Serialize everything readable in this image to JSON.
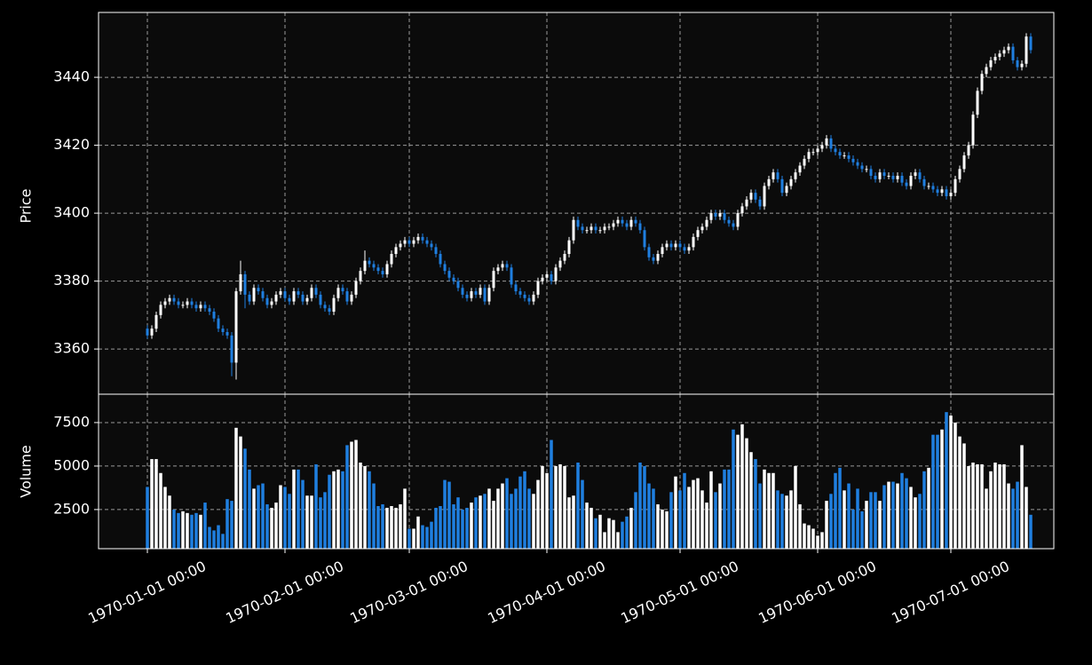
{
  "chart_data": {
    "type": "candlestick",
    "ylabel": "Price",
    "volume_ylabel": "Volume",
    "up_color": "#ffffff",
    "down_color": "#1f7fe0",
    "grid": true,
    "xlim": [
      -11,
      204.2
    ],
    "xticks": [
      {
        "value": 0,
        "label": "1970-01-01 00:00"
      },
      {
        "value": 31,
        "label": "1970-02-01 00:00"
      },
      {
        "value": 59,
        "label": "1970-03-01 00:00"
      },
      {
        "value": 90,
        "label": "1970-04-01 00:00"
      },
      {
        "value": 120,
        "label": "1970-05-01 00:00"
      },
      {
        "value": 151,
        "label": "1970-06-01 00:00"
      },
      {
        "value": 181,
        "label": "1970-07-01 00:00"
      }
    ],
    "ylim": [
      3346.7,
      3459.1
    ],
    "yticks": [
      3360,
      3380,
      3400,
      3420,
      3440
    ],
    "volume_ylim": [
      250,
      9130
    ],
    "volume_yticks": [
      2500,
      5000,
      7500
    ],
    "x": [
      0,
      1,
      2,
      3,
      4,
      5,
      6,
      7,
      8,
      9,
      10,
      11,
      12,
      13,
      14,
      15,
      16,
      17,
      18,
      19,
      20,
      21,
      22,
      23,
      24,
      25,
      26,
      27,
      28,
      29,
      30,
      31,
      32,
      33,
      34,
      35,
      36,
      37,
      38,
      39,
      40,
      41,
      42,
      43,
      44,
      45,
      46,
      47,
      48,
      49,
      50,
      51,
      52,
      53,
      54,
      55,
      56,
      57,
      58,
      59,
      60,
      61,
      62,
      63,
      64,
      65,
      66,
      67,
      68,
      69,
      70,
      71,
      72,
      73,
      74,
      75,
      76,
      77,
      78,
      79,
      80,
      81,
      82,
      83,
      84,
      85,
      86,
      87,
      88,
      89,
      90,
      91,
      92,
      93,
      94,
      95,
      96,
      97,
      98,
      99,
      100,
      101,
      102,
      103,
      104,
      105,
      106,
      107,
      108,
      109,
      110,
      111,
      112,
      113,
      114,
      115,
      116,
      117,
      118,
      119,
      120,
      121,
      122,
      123,
      124,
      125,
      126,
      127,
      128,
      129,
      130,
      131,
      132,
      133,
      134,
      135,
      136,
      137,
      138,
      139,
      140,
      141,
      142,
      143,
      144,
      145,
      146,
      147,
      148,
      149,
      150,
      151,
      152,
      153,
      154,
      155,
      156,
      157,
      158,
      159,
      160,
      161,
      162,
      163,
      164,
      165,
      166,
      167,
      168,
      169,
      170,
      171,
      172,
      173,
      174,
      175,
      176,
      177,
      178,
      179,
      180,
      181,
      182,
      183,
      184,
      185,
      186,
      187,
      188,
      189,
      190,
      191,
      192,
      193,
      194,
      195,
      196,
      197,
      198,
      199
    ],
    "open": [
      3366,
      3364,
      3366,
      3370,
      3373,
      3374,
      3375,
      3374,
      3373,
      3373,
      3374,
      3373,
      3372,
      3373,
      3372,
      3371,
      3369,
      3366,
      3365,
      3364,
      3356,
      3377,
      3382,
      3376,
      3374,
      3378,
      3377,
      3375,
      3373,
      3374,
      3376,
      3377,
      3375,
      3374,
      3377,
      3376,
      3374,
      3375,
      3378,
      3376,
      3373,
      3372,
      3371,
      3375,
      3378,
      3377,
      3374,
      3376,
      3380,
      3383,
      3386,
      3385,
      3384,
      3383,
      3382,
      3385,
      3388,
      3390,
      3391,
      3392,
      3391,
      3392,
      3393,
      3392,
      3391,
      3390,
      3388,
      3385,
      3383,
      3381,
      3380,
      3378,
      3376,
      3375,
      3377,
      3376,
      3378,
      3374,
      3378,
      3383,
      3384,
      3385,
      3384,
      3379,
      3377,
      3376,
      3375,
      3374,
      3376,
      3380,
      3381,
      3382,
      3380,
      3384,
      3386,
      3388,
      3392,
      3398,
      3396,
      3395,
      3395,
      3396,
      3395,
      3395,
      3396,
      3396,
      3397,
      3398,
      3397,
      3396,
      3398,
      3397,
      3395,
      3390,
      3387,
      3386,
      3388,
      3390,
      3391,
      3390,
      3391,
      3390,
      3389,
      3390,
      3393,
      3395,
      3396,
      3398,
      3400,
      3399,
      3400,
      3398,
      3397,
      3396,
      3400,
      3402,
      3404,
      3406,
      3404,
      3402,
      3408,
      3410,
      3412,
      3410,
      3406,
      3408,
      3410,
      3412,
      3414,
      3416,
      3418,
      3418,
      3419,
      3420,
      3422,
      3419,
      3418,
      3417,
      3417,
      3416,
      3415,
      3414,
      3413,
      3413,
      3411,
      3410,
      3412,
      3411,
      3411,
      3410,
      3411,
      3409,
      3408,
      3411,
      3412,
      3410,
      3408,
      3408,
      3407,
      3406,
      3407,
      3405,
      3406,
      3410,
      3413,
      3417,
      3420,
      3429,
      3436,
      3441,
      3443,
      3445,
      3446,
      3447,
      3448,
      3449,
      3445,
      3443,
      3444,
      3452
    ],
    "high": [
      3367,
      3367,
      3371,
      3374,
      3375,
      3376,
      3376,
      3375,
      3374,
      3375,
      3375,
      3374,
      3374,
      3374,
      3373,
      3372,
      3370,
      3367,
      3366,
      3365,
      3378,
      3386,
      3383,
      3377,
      3379,
      3379,
      3378,
      3376,
      3375,
      3377,
      3378,
      3378,
      3376,
      3378,
      3378,
      3377,
      3376,
      3379,
      3379,
      3377,
      3374,
      3373,
      3376,
      3379,
      3379,
      3378,
      3377,
      3381,
      3384,
      3389,
      3387,
      3386,
      3385,
      3384,
      3386,
      3389,
      3391,
      3392,
      3393,
      3393,
      3393,
      3394,
      3394,
      3393,
      3392,
      3391,
      3389,
      3386,
      3384,
      3382,
      3381,
      3379,
      3377,
      3378,
      3378,
      3379,
      3379,
      3379,
      3384,
      3385,
      3386,
      3386,
      3385,
      3380,
      3378,
      3377,
      3376,
      3377,
      3381,
      3382,
      3383,
      3383,
      3385,
      3387,
      3389,
      3393,
      3399,
      3399,
      3397,
      3396,
      3397,
      3397,
      3396,
      3397,
      3397,
      3398,
      3399,
      3399,
      3398,
      3399,
      3399,
      3398,
      3396,
      3391,
      3388,
      3389,
      3391,
      3392,
      3392,
      3392,
      3392,
      3391,
      3391,
      3394,
      3396,
      3397,
      3399,
      3401,
      3401,
      3401,
      3401,
      3399,
      3398,
      3401,
      3403,
      3405,
      3407,
      3407,
      3405,
      3409,
      3411,
      3413,
      3413,
      3411,
      3409,
      3411,
      3413,
      3415,
      3417,
      3419,
      3419,
      3420,
      3421,
      3423,
      3423,
      3420,
      3419,
      3418,
      3418,
      3417,
      3416,
      3415,
      3414,
      3414,
      3412,
      3413,
      3413,
      3412,
      3412,
      3412,
      3412,
      3410,
      3412,
      3413,
      3413,
      3411,
      3409,
      3409,
      3408,
      3408,
      3408,
      3407,
      3411,
      3414,
      3418,
      3421,
      3430,
      3437,
      3442,
      3444,
      3446,
      3447,
      3448,
      3449,
      3450,
      3450,
      3446,
      3445,
      3453,
      3453
    ],
    "low": [
      3363,
      3363,
      3365,
      3369,
      3372,
      3373,
      3373,
      3372,
      3372,
      3372,
      3372,
      3371,
      3371,
      3371,
      3370,
      3368,
      3365,
      3364,
      3363,
      3352,
      3351,
      3376,
      3372,
      3373,
      3373,
      3376,
      3374,
      3372,
      3372,
      3373,
      3375,
      3374,
      3373,
      3373,
      3375,
      3373,
      3373,
      3374,
      3375,
      3372,
      3371,
      3370,
      3370,
      3374,
      3376,
      3373,
      3373,
      3375,
      3379,
      3382,
      3384,
      3383,
      3382,
      3381,
      3381,
      3384,
      3387,
      3389,
      3390,
      3390,
      3390,
      3391,
      3391,
      3390,
      3389,
      3387,
      3384,
      3382,
      3380,
      3379,
      3377,
      3375,
      3374,
      3374,
      3375,
      3375,
      3373,
      3373,
      3377,
      3382,
      3383,
      3383,
      3378,
      3376,
      3375,
      3374,
      3373,
      3373,
      3375,
      3379,
      3380,
      3379,
      3379,
      3383,
      3385,
      3387,
      3391,
      3395,
      3394,
      3394,
      3394,
      3394,
      3394,
      3394,
      3395,
      3395,
      3396,
      3396,
      3395,
      3395,
      3396,
      3394,
      3389,
      3386,
      3385,
      3385,
      3387,
      3389,
      3389,
      3389,
      3389,
      3388,
      3388,
      3389,
      3392,
      3394,
      3395,
      3397,
      3398,
      3398,
      3397,
      3396,
      3395,
      3395,
      3399,
      3401,
      3403,
      3403,
      3401,
      3401,
      3407,
      3409,
      3409,
      3405,
      3405,
      3407,
      3409,
      3411,
      3413,
      3415,
      3417,
      3417,
      3418,
      3419,
      3418,
      3417,
      3416,
      3416,
      3415,
      3414,
      3413,
      3412,
      3412,
      3410,
      3409,
      3409,
      3410,
      3410,
      3409,
      3409,
      3408,
      3407,
      3407,
      3410,
      3409,
      3407,
      3407,
      3406,
      3405,
      3405,
      3404,
      3404,
      3405,
      3409,
      3412,
      3416,
      3419,
      3428,
      3435,
      3440,
      3442,
      3444,
      3445,
      3446,
      3447,
      3444,
      3442,
      3442,
      3443,
      3447
    ],
    "close": [
      3364,
      3366,
      3370,
      3373,
      3374,
      3375,
      3374,
      3373,
      3373,
      3374,
      3373,
      3372,
      3373,
      3372,
      3371,
      3369,
      3366,
      3365,
      3364,
      3356,
      3377,
      3382,
      3376,
      3374,
      3378,
      3377,
      3375,
      3373,
      3374,
      3376,
      3377,
      3375,
      3374,
      3377,
      3376,
      3374,
      3375,
      3378,
      3376,
      3373,
      3372,
      3371,
      3375,
      3378,
      3377,
      3374,
      3376,
      3380,
      3383,
      3386,
      3385,
      3384,
      3383,
      3382,
      3385,
      3388,
      3390,
      3391,
      3392,
      3391,
      3392,
      3393,
      3392,
      3391,
      3390,
      3388,
      3385,
      3383,
      3381,
      3380,
      3378,
      3376,
      3375,
      3377,
      3376,
      3378,
      3374,
      3378,
      3383,
      3384,
      3385,
      3384,
      3379,
      3377,
      3376,
      3375,
      3374,
      3376,
      3380,
      3381,
      3382,
      3380,
      3384,
      3386,
      3388,
      3392,
      3398,
      3396,
      3395,
      3395,
      3396,
      3395,
      3395,
      3396,
      3396,
      3397,
      3398,
      3397,
      3396,
      3398,
      3397,
      3395,
      3390,
      3387,
      3386,
      3388,
      3390,
      3391,
      3390,
      3391,
      3390,
      3389,
      3390,
      3393,
      3395,
      3396,
      3398,
      3400,
      3399,
      3400,
      3398,
      3397,
      3396,
      3400,
      3402,
      3404,
      3406,
      3404,
      3402,
      3408,
      3410,
      3412,
      3410,
      3406,
      3408,
      3410,
      3412,
      3414,
      3416,
      3418,
      3418,
      3419,
      3420,
      3422,
      3419,
      3418,
      3417,
      3417,
      3416,
      3415,
      3414,
      3413,
      3413,
      3411,
      3410,
      3412,
      3411,
      3411,
      3410,
      3411,
      3409,
      3408,
      3411,
      3412,
      3410,
      3408,
      3408,
      3407,
      3406,
      3407,
      3405,
      3406,
      3410,
      3413,
      3417,
      3420,
      3429,
      3436,
      3441,
      3443,
      3445,
      3446,
      3447,
      3448,
      3449,
      3445,
      3443,
      3444,
      3452,
      3448
    ],
    "volume": [
      3800,
      5400,
      5400,
      4600,
      3800,
      3300,
      2500,
      2300,
      2400,
      2300,
      2200,
      2300,
      2200,
      2900,
      1500,
      1300,
      1600,
      1100,
      3100,
      3000,
      7200,
      6700,
      6000,
      4800,
      3700,
      3900,
      4000,
      2800,
      2600,
      2900,
      3900,
      3800,
      3400,
      4800,
      4800,
      4200,
      3300,
      3300,
      5100,
      3200,
      3500,
      4500,
      4700,
      4800,
      4700,
      6200,
      6400,
      6500,
      5200,
      5000,
      4700,
      4000,
      2700,
      2800,
      2600,
      2700,
      2600,
      2800,
      3700,
      1400,
      1400,
      2100,
      1600,
      1500,
      1800,
      2600,
      2700,
      4200,
      4100,
      2800,
      3200,
      2500,
      2600,
      2900,
      3200,
      3300,
      3400,
      3700,
      3000,
      3700,
      4000,
      4300,
      3400,
      3700,
      4400,
      4700,
      3700,
      3400,
      4200,
      5000,
      4600,
      6500,
      5000,
      5100,
      5000,
      3200,
      3300,
      5200,
      4200,
      2900,
      2600,
      2000,
      2200,
      1200,
      2000,
      1900,
      1200,
      1800,
      2100,
      2600,
      3500,
      5200,
      5000,
      4000,
      3700,
      2800,
      2500,
      2400,
      3500,
      4400,
      3600,
      4600,
      3800,
      4200,
      4300,
      3600,
      2900,
      4700,
      3500,
      4000,
      4800,
      4800,
      7100,
      6800,
      7400,
      6600,
      5800,
      5400,
      4000,
      4800,
      4600,
      4600,
      3600,
      3400,
      3300,
      3600,
      5000,
      2800,
      1700,
      1600,
      1400,
      1000,
      1200,
      3000,
      3400,
      4600,
      4900,
      3600,
      4000,
      2500,
      3700,
      2400,
      3000,
      3500,
      3500,
      3000,
      3900,
      4100,
      4100,
      4000,
      4600,
      4300,
      3800,
      3200,
      3400,
      4700,
      4900,
      6800,
      6800,
      7100,
      8100,
      7900,
      7500,
      6700,
      6300,
      5000,
      5200,
      5100,
      5100,
      3700,
      4700,
      5200,
      5100,
      5100,
      4000,
      3700,
      4100,
      6200,
      3800,
      2200
    ]
  }
}
